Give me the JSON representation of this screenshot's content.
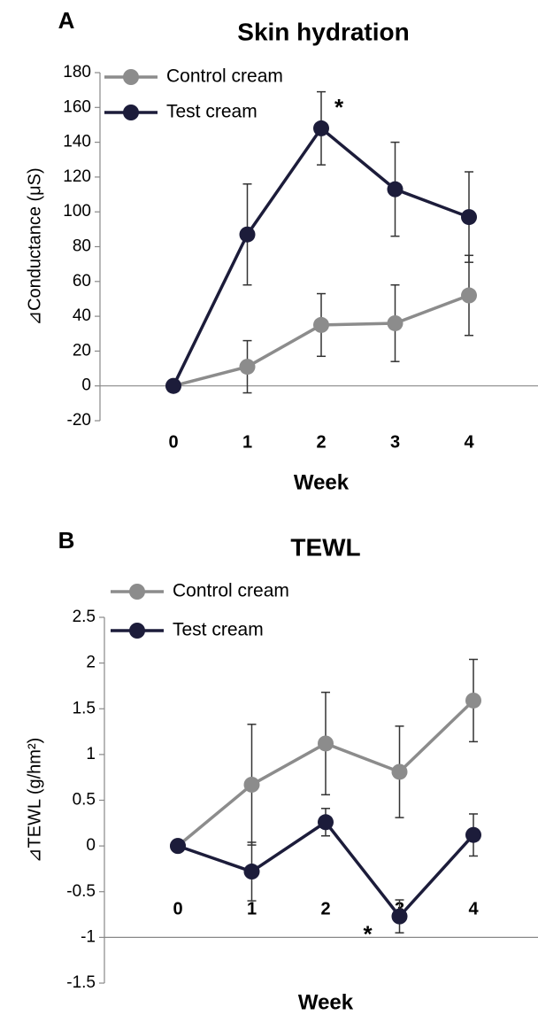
{
  "chart_data": [
    {
      "type": "line",
      "panel_label": "A",
      "title": "Skin hydration",
      "xlabel": "Week",
      "ylabel": "⊿Conductance (μS)",
      "categories": [
        "0",
        "1",
        "2",
        "3",
        "4"
      ],
      "series": [
        {
          "name": "Control cream",
          "color": "#8c8c8c",
          "values": [
            0,
            11,
            35,
            36,
            52
          ],
          "errors": [
            0,
            15,
            18,
            22,
            23
          ]
        },
        {
          "name": "Test cream",
          "color": "#1c1c3a",
          "values": [
            0,
            87,
            148,
            113,
            97
          ],
          "errors": [
            0,
            29,
            21,
            27,
            26
          ]
        }
      ],
      "ylim": [
        -20,
        180
      ],
      "yticks": [
        -20,
        0,
        20,
        40,
        60,
        80,
        100,
        120,
        140,
        160,
        180
      ],
      "baseline": 0,
      "legend": "upper left",
      "annotations": [
        {
          "text": "*",
          "category": "2",
          "series": "Test cream"
        }
      ]
    },
    {
      "type": "line",
      "panel_label": "B",
      "title": "TEWL",
      "xlabel": "Week",
      "ylabel": "⊿TEWL (g/hm²)",
      "categories": [
        "0",
        "1",
        "2",
        "3",
        "4"
      ],
      "series": [
        {
          "name": "Control cream",
          "color": "#8c8c8c",
          "values": [
            0,
            0.67,
            1.12,
            0.81,
            1.59
          ],
          "errors": [
            0,
            0.66,
            0.56,
            0.5,
            0.45
          ]
        },
        {
          "name": "Test cream",
          "color": "#1c1c3a",
          "values": [
            0,
            -0.28,
            0.26,
            -0.77,
            0.12
          ],
          "errors": [
            0,
            0.32,
            0.15,
            0.18,
            0.23
          ]
        }
      ],
      "ylim": [
        -1.5,
        2.5
      ],
      "yticks": [
        -1.5,
        -1,
        -0.5,
        0,
        0.5,
        1,
        1.5,
        2,
        2.5
      ],
      "baseline": -1,
      "legend": "upper left",
      "annotations": [
        {
          "text": "*",
          "category": "3",
          "series": "Test cream"
        }
      ]
    }
  ]
}
